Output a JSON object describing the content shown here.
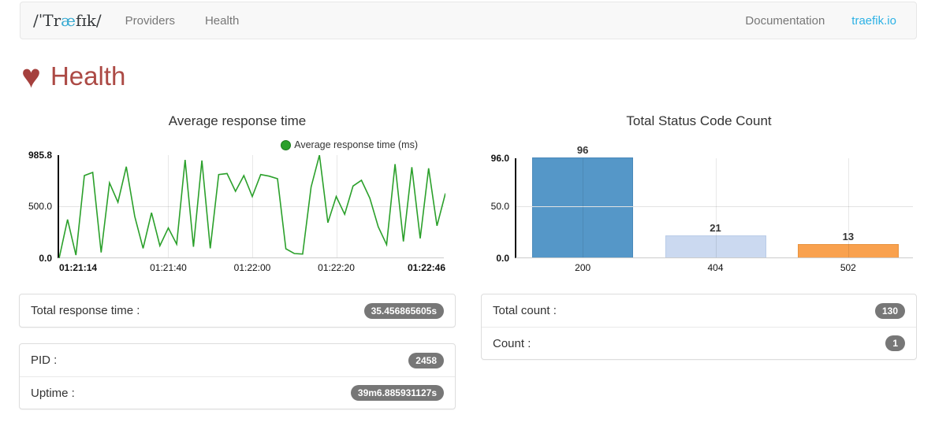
{
  "navbar": {
    "brand": {
      "prefix": "/ˈTr",
      "accent": "æ",
      "suffix": "fɪk/"
    },
    "links": [
      {
        "label": "Providers"
      },
      {
        "label": "Health"
      }
    ],
    "right_links": [
      {
        "label": "Documentation"
      },
      {
        "label": "traefik.io"
      }
    ]
  },
  "page": {
    "title": "Health"
  },
  "colors": {
    "badge": "#777777",
    "page_title": "#ac4a45",
    "heart": "#a5403d",
    "link_accent": "#2cb1e5",
    "line_series": "#2ba02b"
  },
  "chart_data": [
    {
      "id": "average-response-time",
      "type": "line",
      "title": "Average response time",
      "legend": "Average response time (ms)",
      "color": "#2ba02b",
      "ylim": [
        0,
        985.8
      ],
      "yticks": [
        "0.0",
        "500.0",
        "985.8"
      ],
      "xticks": [
        "01:21:14",
        "01:21:40",
        "01:22:00",
        "01:22:20",
        "01:22:46"
      ],
      "grid": true,
      "x": [
        "01:21:14",
        "01:21:16",
        "01:21:18",
        "01:21:20",
        "01:21:22",
        "01:21:24",
        "01:21:26",
        "01:21:28",
        "01:21:30",
        "01:21:32",
        "01:21:34",
        "01:21:36",
        "01:21:38",
        "01:21:40",
        "01:21:42",
        "01:21:44",
        "01:21:46",
        "01:21:48",
        "01:21:50",
        "01:21:52",
        "01:21:54",
        "01:21:56",
        "01:21:58",
        "01:22:00",
        "01:22:02",
        "01:22:04",
        "01:22:06",
        "01:22:08",
        "01:22:10",
        "01:22:12",
        "01:22:14",
        "01:22:16",
        "01:22:18",
        "01:22:20",
        "01:22:22",
        "01:22:24",
        "01:22:26",
        "01:22:28",
        "01:22:30",
        "01:22:32",
        "01:22:34",
        "01:22:36",
        "01:22:38",
        "01:22:40",
        "01:22:42",
        "01:22:44",
        "01:22:46"
      ],
      "values": [
        0,
        370,
        30,
        790,
        820,
        55,
        720,
        535,
        875,
        400,
        95,
        435,
        120,
        290,
        135,
        940,
        110,
        935,
        95,
        800,
        810,
        640,
        790,
        590,
        800,
        785,
        760,
        90,
        45,
        40,
        680,
        985.8,
        340,
        590,
        420,
        690,
        745,
        575,
        300,
        130,
        900,
        160,
        870,
        190,
        860,
        310,
        620
      ]
    },
    {
      "id": "total-status-code-count",
      "type": "bar",
      "title": "Total Status Code Count",
      "categories": [
        "200",
        "404",
        "502"
      ],
      "values": [
        96,
        21,
        13
      ],
      "value_labels": [
        "96",
        "21",
        "13"
      ],
      "colors": [
        "#5597c8",
        "#cbd9f0",
        "#f9a14e"
      ],
      "border_colors": [
        "#4a89ba",
        "#b9cce8",
        "#e8933f"
      ],
      "ylim": [
        0,
        96
      ],
      "yticks": [
        "0.0",
        "50.0",
        "96.0"
      ],
      "grid": true
    }
  ],
  "panels": {
    "left": [
      {
        "rows": [
          {
            "label": "Total response time :",
            "value": "35.456865605s"
          }
        ]
      },
      {
        "rows": [
          {
            "label": "PID :",
            "value": "2458"
          },
          {
            "label": "Uptime :",
            "value": "39m6.885931127s"
          }
        ]
      }
    ],
    "right": [
      {
        "rows": [
          {
            "label": "Total count :",
            "value": "130"
          },
          {
            "label": "Count :",
            "value": "1"
          }
        ]
      }
    ]
  }
}
